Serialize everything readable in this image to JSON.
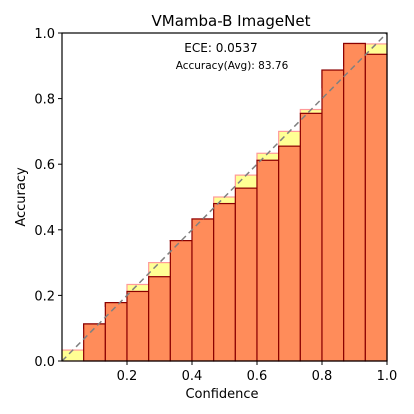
{
  "chart_data": {
    "type": "bar",
    "title": "VMamba-B  ImageNet",
    "xlabel": "Confidence",
    "ylabel": "Accuracy",
    "xlim": [
      0,
      1
    ],
    "ylim": [
      0,
      1
    ],
    "xticks": [
      "0.2",
      "0.4",
      "0.6",
      "0.8",
      "1.0"
    ],
    "yticks": [
      "0.0",
      "0.2",
      "0.4",
      "0.6",
      "0.8",
      "1.0"
    ],
    "grid": false,
    "annotations": {
      "ece": "ECE: 0.0537",
      "accuracy": "Accuracy(Avg): 83.76"
    },
    "bins": [
      {
        "confidence": 0.0333,
        "accuracy": 0.0
      },
      {
        "confidence": 0.1,
        "accuracy": 0.113
      },
      {
        "confidence": 0.1667,
        "accuracy": 0.178
      },
      {
        "confidence": 0.2333,
        "accuracy": 0.212
      },
      {
        "confidence": 0.3,
        "accuracy": 0.257
      },
      {
        "confidence": 0.3667,
        "accuracy": 0.367
      },
      {
        "confidence": 0.4333,
        "accuracy": 0.433
      },
      {
        "confidence": 0.5,
        "accuracy": 0.48
      },
      {
        "confidence": 0.5667,
        "accuracy": 0.527
      },
      {
        "confidence": 0.6333,
        "accuracy": 0.612
      },
      {
        "confidence": 0.7,
        "accuracy": 0.655
      },
      {
        "confidence": 0.7667,
        "accuracy": 0.755
      },
      {
        "confidence": 0.8333,
        "accuracy": 0.887
      },
      {
        "confidence": 0.9,
        "accuracy": 0.968
      },
      {
        "confidence": 0.9667,
        "accuracy": 0.935
      }
    ],
    "bin_width": 0.0667,
    "colors": {
      "accuracy_bar": "#ff8c5a",
      "accuracy_edge": "#8b0000",
      "gap_under": "#ffff66",
      "gap_under_edge": "#ff9a9a",
      "gap_over": "#ffb400",
      "diagonal": "#808080"
    }
  }
}
